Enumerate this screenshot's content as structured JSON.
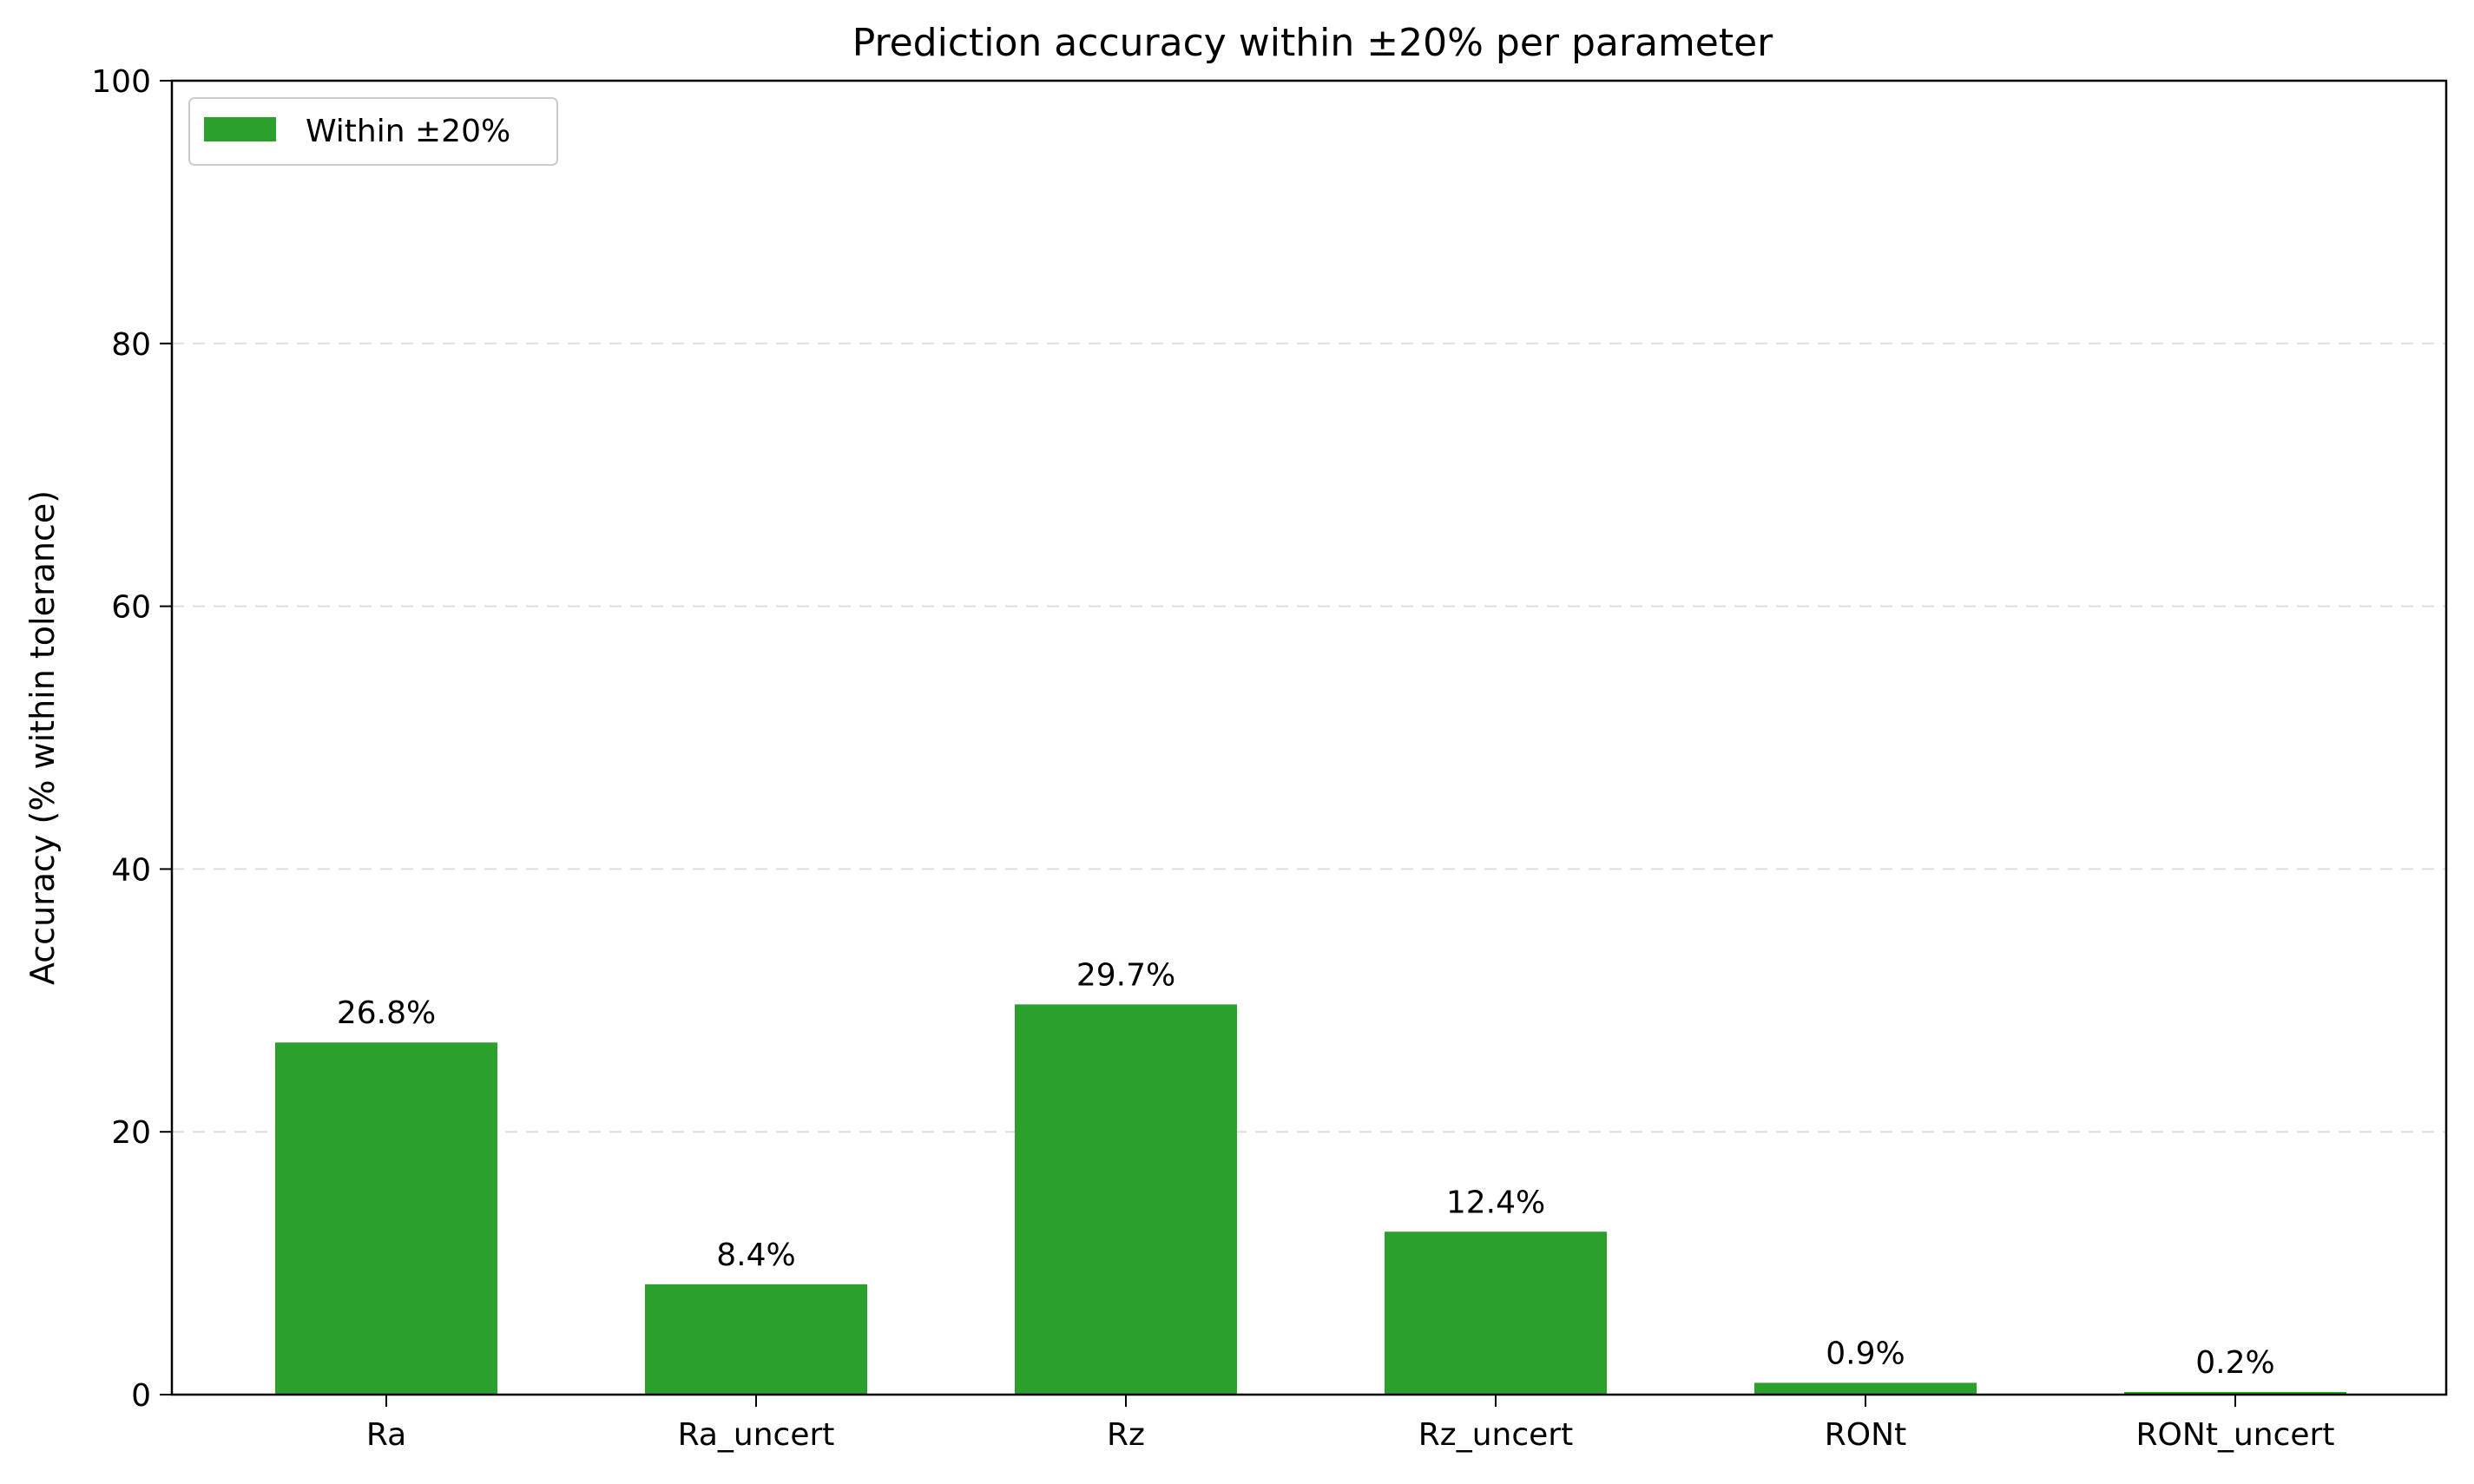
{
  "chart_data": {
    "type": "bar",
    "title": "Prediction accuracy within ±20% per parameter",
    "xlabel": "",
    "ylabel": "Accuracy (% within tolerance)",
    "categories": [
      "Ra",
      "Ra_uncert",
      "Rz",
      "Rz_uncert",
      "RONt",
      "RONt_uncert"
    ],
    "series": [
      {
        "name": "Within ±20%",
        "values": [
          26.8,
          8.4,
          29.7,
          12.4,
          0.9,
          0.2
        ],
        "color": "#2ca02c"
      }
    ],
    "data_labels": [
      "26.8%",
      "8.4%",
      "29.7%",
      "12.4%",
      "0.9%",
      "0.2%"
    ],
    "ylim": [
      0,
      100
    ],
    "yticks": [
      0,
      20,
      40,
      60,
      80,
      100
    ],
    "ytick_labels": [
      "0",
      "20",
      "40",
      "60",
      "80",
      "100"
    ],
    "grid": "y-dashed",
    "legend_position": "top-left"
  }
}
